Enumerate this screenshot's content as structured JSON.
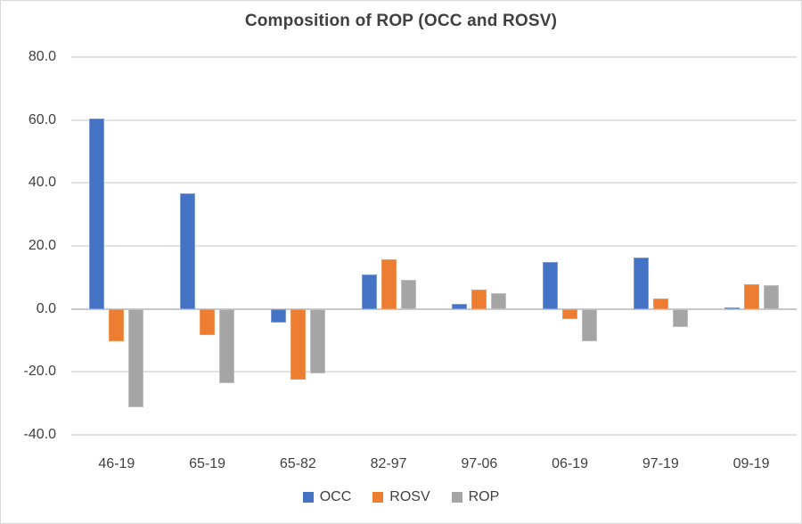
{
  "chart_data": {
    "type": "bar",
    "title": "Composition of ROP (OCC and ROSV)",
    "categories": [
      "46-19",
      "65-19",
      "65-82",
      "82-97",
      "97-06",
      "06-19",
      "97-19",
      "09-19"
    ],
    "series": [
      {
        "name": "OCC",
        "color": "#4472C4",
        "border_color": "#7D9BD6",
        "values": [
          60.5,
          36.6,
          -4.3,
          11.0,
          1.5,
          14.8,
          16.3,
          0.4
        ]
      },
      {
        "name": "ROSV",
        "color": "#ED7D31",
        "border_color": "#F0975B",
        "values": [
          -10.3,
          -8.3,
          -22.5,
          15.7,
          6.0,
          -3.3,
          3.2,
          7.9
        ]
      },
      {
        "name": "ROP",
        "color": "#A5A5A5",
        "border_color": "#BFBFBF",
        "values": [
          -31.2,
          -23.5,
          -20.6,
          9.2,
          5.1,
          -10.2,
          -5.7,
          7.6
        ]
      }
    ],
    "ylim": [
      -40,
      80
    ],
    "ytick_values": [
      80,
      60,
      40,
      20,
      0,
      -20,
      -40
    ],
    "ytick_labels": [
      "80.0",
      "60.0",
      "40.0",
      "20.0",
      "0.0",
      "-20.0",
      "-40.0"
    ],
    "xlabel": "",
    "ylabel": "",
    "grid": true,
    "legend_position": "bottom"
  },
  "colors": {
    "background": "#FFFFFF",
    "frame_border": "#D9D9D9",
    "gridline": "#E2E2E2",
    "zero_line": "#C9C9C9",
    "text": "#404040"
  }
}
